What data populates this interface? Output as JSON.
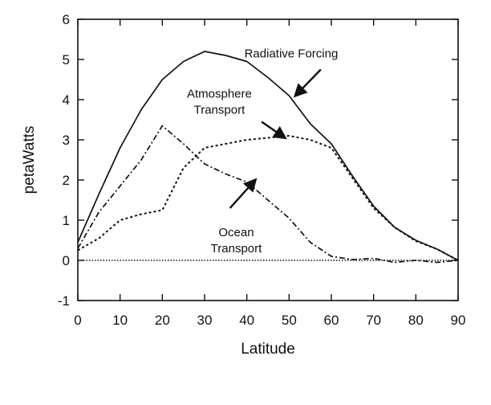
{
  "chart_data": {
    "type": "line",
    "title": "",
    "xlabel": "Latitude",
    "ylabel": "petaWatts",
    "xlim": [
      0,
      90
    ],
    "ylim": [
      -1,
      6
    ],
    "x_ticks": [
      "0",
      "10",
      "20",
      "30",
      "40",
      "50",
      "60",
      "70",
      "80",
      "90"
    ],
    "y_ticks": [
      "-1",
      "0",
      "1",
      "2",
      "3",
      "4",
      "5",
      "6"
    ],
    "grid": false,
    "legend": "none",
    "series": [
      {
        "name": "Radiative Forcing",
        "style": "solid",
        "x": [
          0,
          5,
          10,
          15,
          20,
          25,
          30,
          35,
          40,
          45,
          50,
          55,
          60,
          65,
          70,
          75,
          80,
          85,
          90
        ],
        "y": [
          0.45,
          1.65,
          2.8,
          3.75,
          4.5,
          4.95,
          5.2,
          5.1,
          4.95,
          4.55,
          4.1,
          3.4,
          2.9,
          2.1,
          1.35,
          0.82,
          0.5,
          0.28,
          0.0
        ]
      },
      {
        "name": "Atmosphere Transport",
        "style": "dotted",
        "x": [
          0,
          5,
          10,
          15,
          20,
          25,
          30,
          35,
          40,
          45,
          50,
          55,
          60,
          65,
          70,
          75,
          80,
          85,
          90
        ],
        "y": [
          0.25,
          0.55,
          1.0,
          1.15,
          1.25,
          2.3,
          2.8,
          2.9,
          3.0,
          3.05,
          3.1,
          3.0,
          2.8,
          2.05,
          1.3,
          0.82,
          0.48,
          0.28,
          0.0
        ]
      },
      {
        "name": "Ocean Transport",
        "style": "dashdot",
        "x": [
          0,
          5,
          10,
          15,
          20,
          25,
          30,
          35,
          40,
          45,
          50,
          55,
          60,
          65,
          70,
          75,
          80,
          85,
          90
        ],
        "y": [
          0.3,
          1.2,
          1.85,
          2.5,
          3.35,
          2.9,
          2.4,
          2.15,
          1.95,
          1.5,
          1.05,
          0.45,
          0.1,
          0.02,
          0.05,
          -0.05,
          0.0,
          -0.05,
          0.0
        ]
      },
      {
        "name": "",
        "style": "zero-line",
        "x": [
          0,
          90
        ],
        "y": [
          0,
          0
        ]
      }
    ],
    "annotations": [
      {
        "id": "radiative",
        "lines": [
          "Radiative Forcing"
        ],
        "text_at": [
          50.5,
          5.05
        ],
        "arrow_from": [
          57.5,
          4.75
        ],
        "arrow_to": [
          51.5,
          4.1
        ]
      },
      {
        "id": "atmosphere",
        "lines": [
          "Atmosphere",
          "Transport"
        ],
        "text_at": [
          33.5,
          4.05
        ],
        "arrow_from": [
          43.5,
          3.45
        ],
        "arrow_to": [
          49.0,
          3.05
        ]
      },
      {
        "id": "ocean",
        "lines": [
          "Ocean",
          "Transport"
        ],
        "text_at": [
          37.5,
          0.6
        ],
        "arrow_from": [
          36.0,
          1.3
        ],
        "arrow_to": [
          42.0,
          2.0
        ]
      }
    ]
  }
}
